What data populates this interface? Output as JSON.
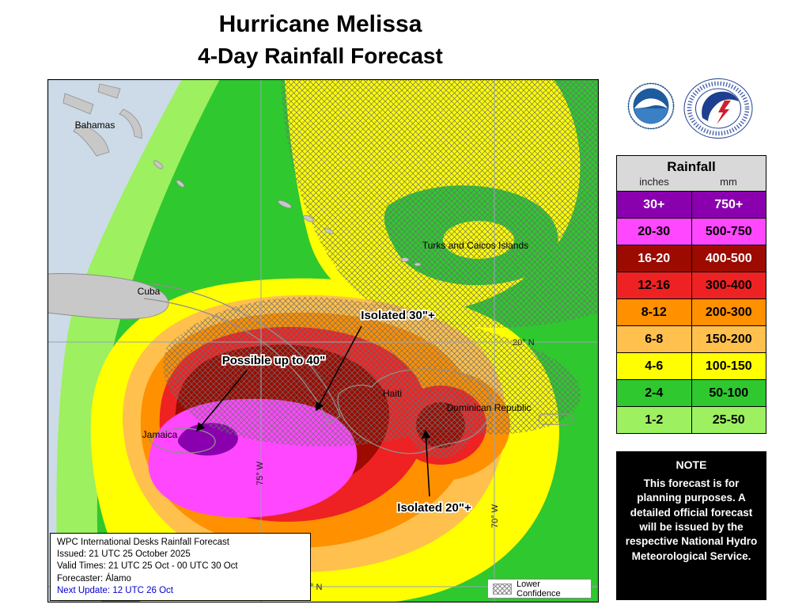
{
  "title": {
    "line1": "Hurricane Melissa",
    "line2": "4-Day Rainfall Forecast"
  },
  "logos": {
    "noaa": "NOAA",
    "nws": "National Weather Service"
  },
  "legend": {
    "title": "Rainfall",
    "units": {
      "left": "inches",
      "right": "mm"
    },
    "rows": [
      {
        "inches": "30+",
        "mm": "750+",
        "color": "#8A00AE",
        "text_color": "#FFFFFF"
      },
      {
        "inches": "20-30",
        "mm": "500-750",
        "color": "#FF47FF",
        "text_color": "#000000"
      },
      {
        "inches": "16-20",
        "mm": "400-500",
        "color": "#9C0A00",
        "text_color": "#FFFFFF"
      },
      {
        "inches": "12-16",
        "mm": "300-400",
        "color": "#EE2222",
        "text_color": "#000000"
      },
      {
        "inches": "8-12",
        "mm": "200-300",
        "color": "#FF9000",
        "text_color": "#000000"
      },
      {
        "inches": "6-8",
        "mm": "150-200",
        "color": "#FFC04D",
        "text_color": "#000000"
      },
      {
        "inches": "4-6",
        "mm": "100-150",
        "color": "#FFFF00",
        "text_color": "#000000"
      },
      {
        "inches": "2-4",
        "mm": "50-100",
        "color": "#2FC82F",
        "text_color": "#000000"
      },
      {
        "inches": "1-2",
        "mm": "25-50",
        "color": "#9DF05F",
        "text_color": "#000000"
      }
    ]
  },
  "note": {
    "title": "NOTE",
    "body": "This forecast is for planning purposes. A detailed official forecast will be issued by the respective National Hydro Meteorological Service."
  },
  "info_box": {
    "line1": "WPC International Desks Rainfall Forecast",
    "line2": "Issued: 21 UTC 25 October 2025",
    "line3": "Valid Times: 21 UTC 25 Oct - 00 UTC 30 Oct",
    "line4": "Forecaster: Álamo",
    "line5": "Next Update: 12 UTC 26 Oct"
  },
  "map": {
    "place_labels": {
      "bahamas": "Bahamas",
      "cuba": "Cuba",
      "turks": "Turks and Caicos Islands",
      "haiti": "Haiti",
      "dominican_republic": "Dominican Republic",
      "jamaica": "Jamaica"
    },
    "annotations": {
      "isolated30": "Isolated 30\"+",
      "upto40": "Possible up to 40\"",
      "isolated20": "Isolated 20\"+"
    },
    "grid_labels": {
      "lat20": "20° N",
      "lon75": "75° W",
      "lon70": "70° W",
      "lat_bottom_partial": "° N"
    },
    "lower_confidence": "Lower Confidence"
  }
}
